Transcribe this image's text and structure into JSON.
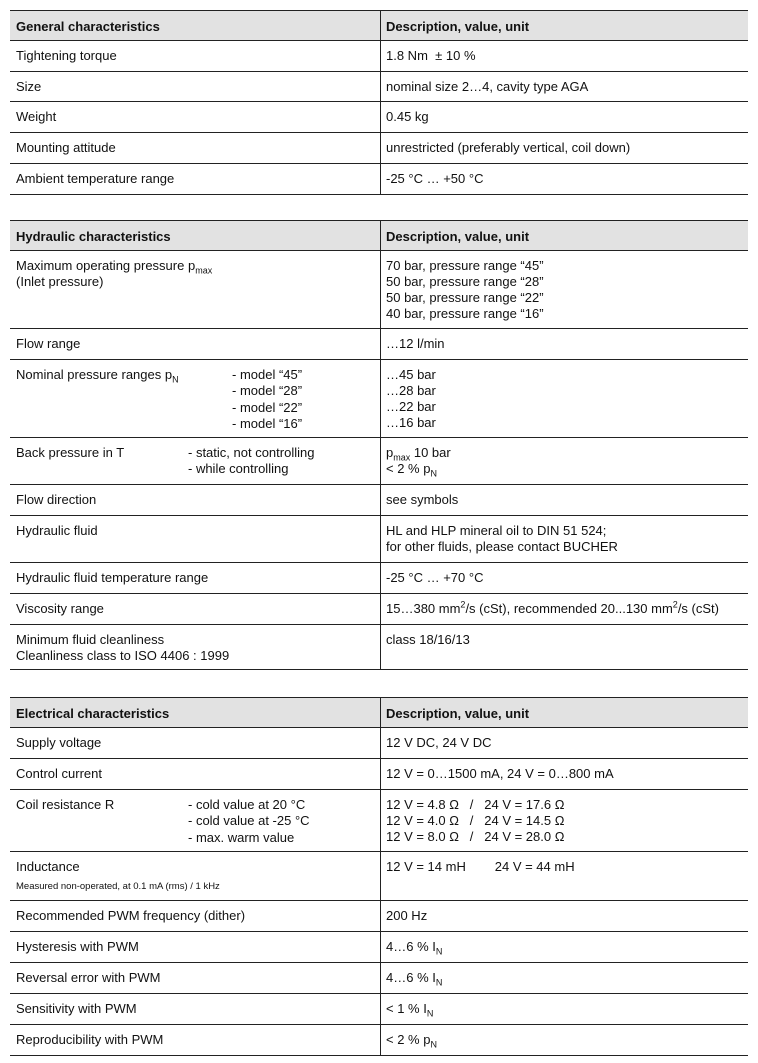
{
  "tables": [
    {
      "header": [
        "General characteristics",
        "Description, value, unit"
      ],
      "rows": [
        {
          "label": [
            "Tightening torque"
          ],
          "value": [
            "1.8 Nm  ± 10 %"
          ]
        },
        {
          "label": [
            "Size"
          ],
          "value": [
            "nominal size 2…4, cavity type AGA"
          ]
        },
        {
          "label": [
            "Weight"
          ],
          "value": [
            "0.45 kg"
          ]
        },
        {
          "label": [
            "Mounting attitude"
          ],
          "value": [
            "unrestricted (preferably vertical, coil down)"
          ]
        },
        {
          "label": [
            "Ambient temperature range"
          ],
          "value": [
            "-25 °C … +50 °C"
          ]
        }
      ]
    },
    {
      "header": [
        "Hydraulic characteristics",
        "Description, value, unit"
      ],
      "rows": [
        {
          "label": [
            [
              "Maximum operating pressure p",
              {
                "sub": "max"
              }
            ],
            "(Inlet pressure)"
          ],
          "value": [
            "70 bar, pressure range “45”",
            "50 bar, pressure range “28”",
            "50 bar, pressure range “22”",
            "40 bar, pressure range “16”"
          ]
        },
        {
          "label": [
            "Flow range"
          ],
          "value": [
            "…12 l/min"
          ]
        },
        {
          "label": [
            [
              "Nominal pressure ranges p",
              {
                "sub": "N"
              }
            ]
          ],
          "notes": [
            "- model “45”",
            "- model “28”",
            "- model “22”",
            "- model “16”"
          ],
          "value": [
            "…45 bar",
            "…28 bar",
            "…22 bar",
            "…16 bar"
          ]
        },
        {
          "label": [
            "Back pressure in T"
          ],
          "notes": [
            "- static, not controlling",
            "- while controlling"
          ],
          "value": [
            [
              "p",
              {
                "sub": "max"
              },
              " 10 bar"
            ],
            [
              "< 2 % p",
              {
                "sub": "N"
              }
            ]
          ]
        },
        {
          "label": [
            "Flow direction"
          ],
          "value": [
            "see symbols"
          ]
        },
        {
          "label": [
            "Hydraulic fluid"
          ],
          "value": [
            "HL and HLP mineral oil to DIN 51 524;",
            "for other fluids, please contact BUCHER"
          ]
        },
        {
          "label": [
            "Hydraulic fluid temperature range"
          ],
          "value": [
            "-25 °C … +70 °C"
          ]
        },
        {
          "label": [
            "Viscosity range"
          ],
          "value": [
            [
              "15…380 mm",
              {
                "sup": "2"
              },
              "/s (cSt), recommended 20...130 mm",
              {
                "sup": "2"
              },
              "/s (cSt)"
            ]
          ]
        },
        {
          "label": [
            "Minimum fluid cleanliness",
            "Cleanliness class to ISO 4406 : 1999"
          ],
          "value": [
            "class 18/16/13"
          ]
        }
      ]
    },
    {
      "header": [
        "Electrical characteristics",
        "Description, value, unit"
      ],
      "rows": [
        {
          "label": [
            "Supply voltage"
          ],
          "value": [
            "12 V DC, 24 V DC"
          ]
        },
        {
          "label": [
            "Control current"
          ],
          "value": [
            "12 V = 0…1500 mA, 24 V = 0…800 mA"
          ]
        },
        {
          "label": [
            "Coil resistance R"
          ],
          "notes": [
            "- cold value at 20 °C",
            "- cold value at -25 °C",
            "- max. warm value"
          ],
          "value": [
            "12 V = 4.8 Ω   /   24 V = 17.6 Ω",
            "12 V = 4.0 Ω   /   24 V = 14.5 Ω",
            "12 V = 8.0 Ω   /   24 V = 28.0 Ω"
          ]
        },
        {
          "label": [
            "Inductance"
          ],
          "small": "Measured non-operated, at 0.1 mA (rms) / 1 kHz",
          "value": [
            "12 V = 14 mH        24 V = 44 mH"
          ]
        },
        {
          "label": [
            "Recommended PWM frequency (dither)"
          ],
          "value": [
            "200 Hz"
          ]
        },
        {
          "label": [
            "Hysteresis with PWM"
          ],
          "value": [
            [
              "4…6 % I",
              {
                "sub": "N"
              }
            ]
          ]
        },
        {
          "label": [
            "Reversal error with PWM"
          ],
          "value": [
            [
              "4…6 % I",
              {
                "sub": "N"
              }
            ]
          ]
        },
        {
          "label": [
            "Sensitivity with PWM"
          ],
          "value": [
            [
              "< 1 % I",
              {
                "sub": "N"
              }
            ]
          ]
        },
        {
          "label": [
            "Reproducibility with PWM"
          ],
          "value": [
            [
              "< 2 % p",
              {
                "sub": "N"
              }
            ]
          ]
        }
      ]
    }
  ]
}
